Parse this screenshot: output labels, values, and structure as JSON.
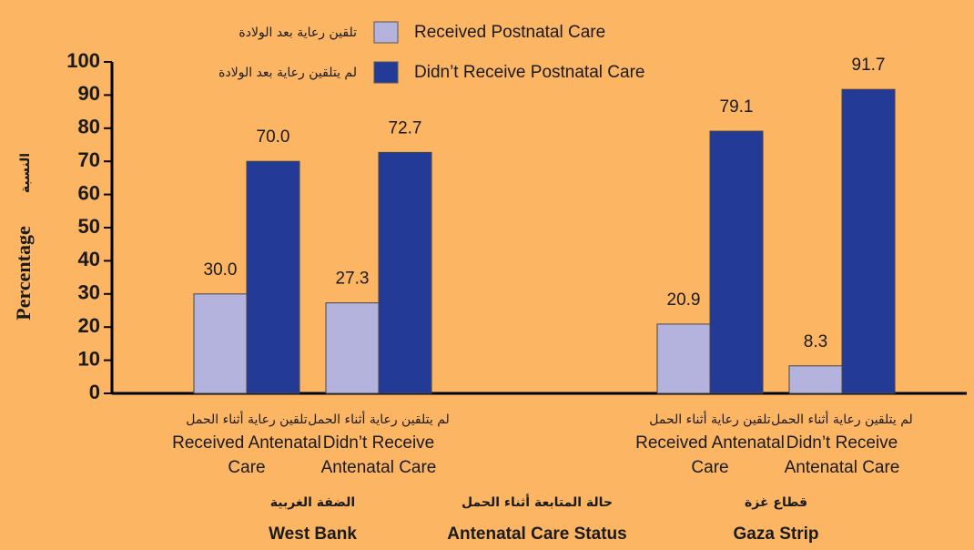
{
  "chart_data": {
    "type": "bar",
    "y_label": "Percentage",
    "y_label_ar": "النسبة",
    "x_label": "Antenatal Care Status",
    "x_label_ar": "حالة المتابعة أثناء الحمل",
    "categories": [
      "Received Antenatal Care",
      "Didn’t Receive Antenatal Care",
      "Received Antenatal Care",
      "Didn’t Receive Antenatal Care"
    ],
    "categories_ar": [
      "تلقين رعاية أثناء الحمل",
      "لم يتلقين رعاية أثناء الحمل",
      "تلقين رعاية أثناء الحمل",
      "لم يتلقين رعاية أثناء الحمل"
    ],
    "groups": [
      {
        "name": "West Bank",
        "name_ar": "الضفة الغربية"
      },
      {
        "name": "Gaza Strip",
        "name_ar": "قطاع غزة"
      }
    ],
    "series": [
      {
        "name": "Received Postnatal Care",
        "name_ar": "تلقين رعاية بعد الولادة",
        "color": "#b3b3dd",
        "values": [
          30.0,
          27.3,
          20.9,
          8.3
        ],
        "value_labels": [
          "30.0",
          "27.3",
          "20.9",
          "8.3"
        ]
      },
      {
        "name": "Didn’t Receive Postnatal Care",
        "name_ar": "لم يتلقين رعاية بعد الولادة",
        "color": "#233a96",
        "values": [
          70.0,
          72.7,
          79.1,
          91.7
        ],
        "value_labels": [
          "70.0",
          "72.7",
          "79.1",
          "91.7"
        ]
      }
    ],
    "ylim": [
      0,
      100
    ],
    "yticks": [
      0,
      10,
      20,
      30,
      40,
      50,
      60,
      70,
      80,
      90,
      100
    ]
  }
}
